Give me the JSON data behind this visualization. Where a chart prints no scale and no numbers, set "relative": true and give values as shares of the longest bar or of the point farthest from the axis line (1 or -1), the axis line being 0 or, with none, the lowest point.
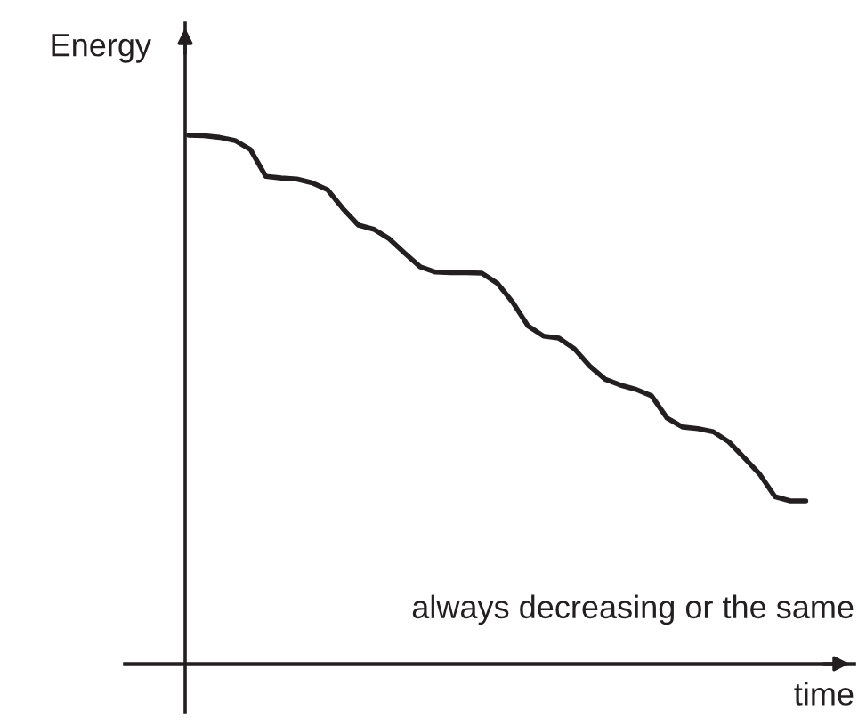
{
  "chart_data": {
    "type": "line",
    "relative": true,
    "xlabel": "time",
    "ylabel": "Energy",
    "tick_labels": false,
    "annotations": [
      "always decreasing or the same"
    ],
    "categories": [
      null,
      null,
      null,
      null,
      null,
      null,
      null,
      null,
      null,
      null,
      null,
      null,
      null,
      null,
      null,
      null,
      null,
      null,
      null,
      null,
      null,
      null,
      null,
      null,
      null,
      null,
      null,
      null,
      null,
      null,
      null,
      null,
      null,
      null,
      null,
      null,
      null,
      null,
      null,
      null,
      null
    ],
    "series": [
      {
        "color": "#231f20",
        "values": [
          1.0,
          0.999,
          0.996,
          0.99,
          0.973,
          0.922,
          0.919,
          0.917,
          0.91,
          0.897,
          0.861,
          0.83,
          0.822,
          0.804,
          0.777,
          0.751,
          0.741,
          0.74,
          0.74,
          0.739,
          0.72,
          0.684,
          0.639,
          0.62,
          0.616,
          0.596,
          0.563,
          0.538,
          0.527,
          0.519,
          0.507,
          0.465,
          0.448,
          0.445,
          0.439,
          0.42,
          0.39,
          0.359,
          0.316,
          0.308,
          0.308
        ]
      }
    ]
  }
}
